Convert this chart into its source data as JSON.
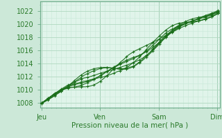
{
  "background_color": "#cce8d8",
  "plot_bg_color": "#e0f4ea",
  "grid_color": "#b8dcc8",
  "line_color": "#1a6e1a",
  "tick_color": "#2a7a2a",
  "xlabel": "Pression niveau de la mer( hPa )",
  "xtick_labels": [
    "Jeu",
    "Ven",
    "Sam",
    "Dim"
  ],
  "xtick_positions": [
    0,
    72,
    144,
    216
  ],
  "xlim": [
    -2,
    219
  ],
  "ylim": [
    1007.3,
    1023.5
  ],
  "yticks": [
    1008,
    1010,
    1012,
    1014,
    1016,
    1018,
    1020,
    1022
  ],
  "total_hours": 217,
  "n_lines": 7,
  "xlabel_fontsize": 7.5,
  "tick_fontsize": 7
}
